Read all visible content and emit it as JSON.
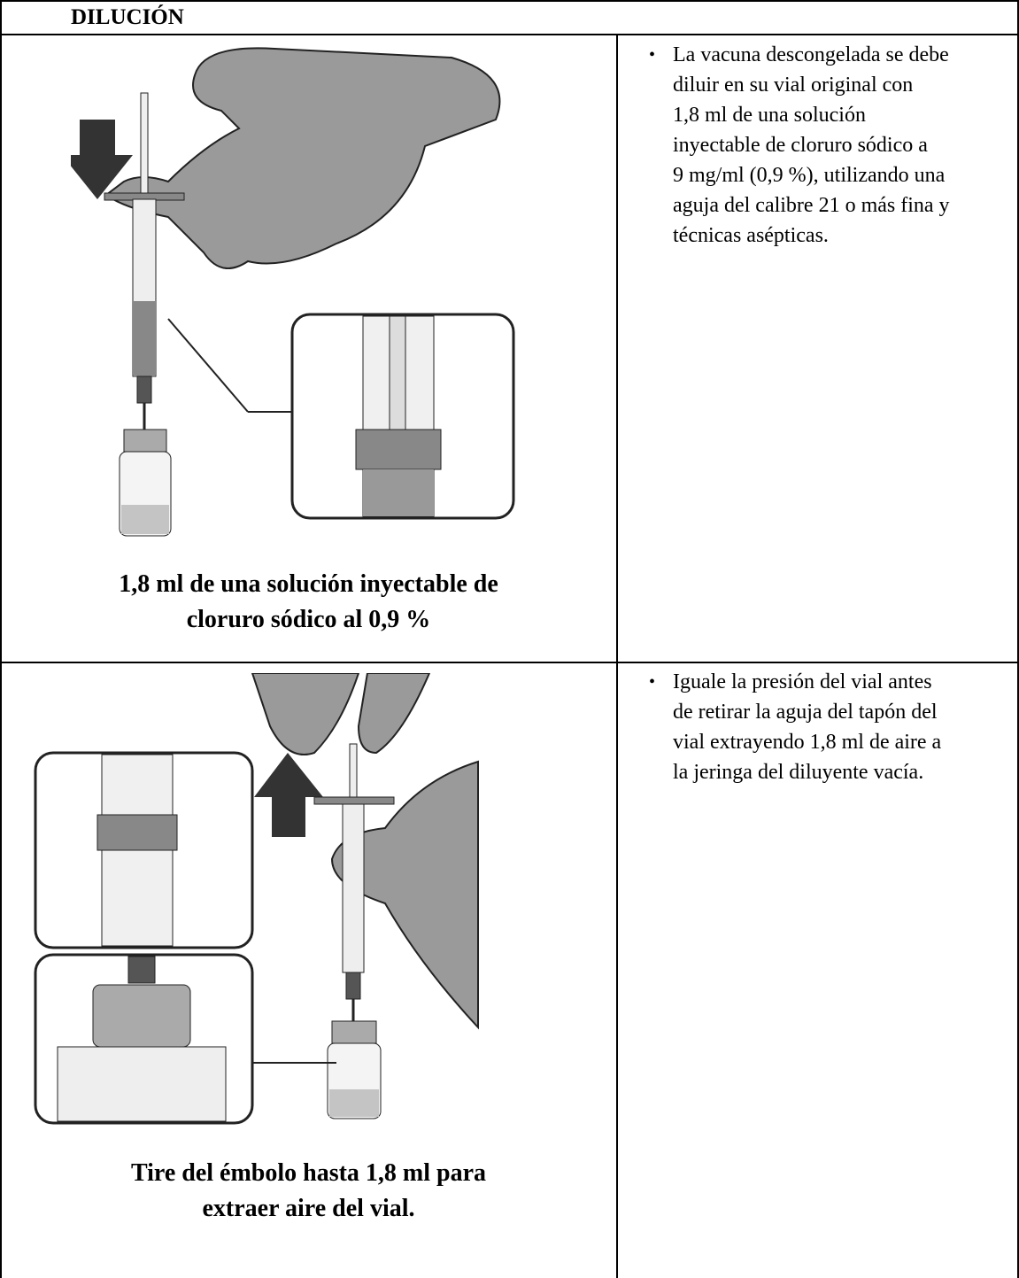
{
  "header": {
    "title": "DILUCIÓN"
  },
  "rows": [
    {
      "caption": [
        "1,8 ml de una solución inyectable de",
        "cloruro sódico al 0,9 %"
      ],
      "text": [
        "La vacuna descongelada se debe",
        "diluir en su vial original con",
        "1,8 ml de una solución",
        "inyectable de cloruro sódico a",
        "9 mg/ml (0,9 %), utilizando una",
        "aguja del calibre 21 o más fina y",
        "técnicas asépticas."
      ]
    },
    {
      "caption": [
        "Tire del émbolo hasta 1,8 ml para",
        "extraer aire del vial."
      ],
      "text": [
        "Iguale la presión del vial antes",
        "de retirar la aguja del tapón del",
        "vial extrayendo 1,8 ml de aire a",
        "la jeringa del diluyente vacía."
      ]
    }
  ]
}
